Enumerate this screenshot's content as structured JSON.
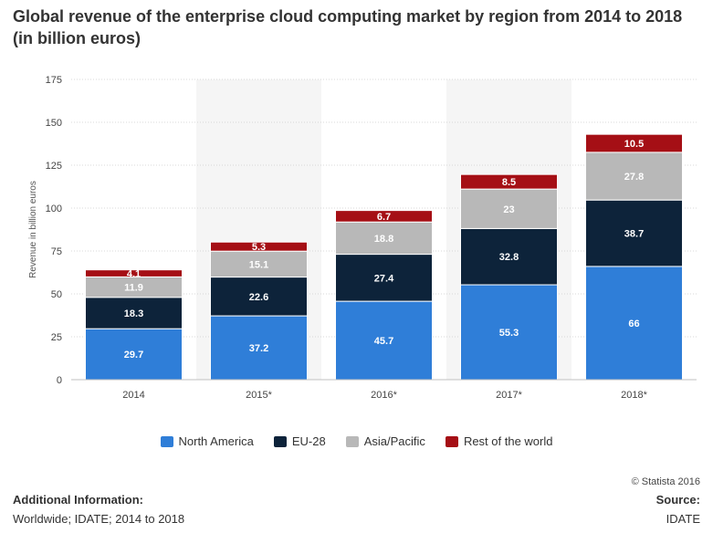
{
  "title": "Global revenue of the enterprise cloud computing market by region from 2014 to 2018 (in billion euros)",
  "chart_data": {
    "type": "bar",
    "stacked": true,
    "categories": [
      "2014",
      "2015*",
      "2016*",
      "2017*",
      "2018*"
    ],
    "series": [
      {
        "name": "North America",
        "color": "#2f7ed8",
        "values": [
          29.7,
          37.2,
          45.7,
          55.3,
          66
        ]
      },
      {
        "name": "EU-28",
        "color": "#0d233a",
        "values": [
          18.3,
          22.6,
          27.4,
          32.8,
          38.7
        ]
      },
      {
        "name": "Asia/Pacific",
        "color": "#b8b8b8",
        "values": [
          11.9,
          15.1,
          18.8,
          23,
          27.8
        ]
      },
      {
        "name": "Rest of the world",
        "color": "#a50f15",
        "values": [
          4.1,
          5.3,
          6.7,
          8.5,
          10.5
        ]
      }
    ],
    "ylabel": "Revenue in billion euros",
    "ylim": [
      0,
      175
    ],
    "yticks": [
      0,
      25,
      50,
      75,
      100,
      125,
      150,
      175
    ],
    "grid": true,
    "legend_position": "bottom"
  },
  "footer": {
    "copyright": "© Statista 2016",
    "additional_info_label": "Additional Information:",
    "additional_info_text": "Worldwide; IDATE; 2014 to 2018",
    "source_label": "Source:",
    "source_text": "IDATE"
  }
}
